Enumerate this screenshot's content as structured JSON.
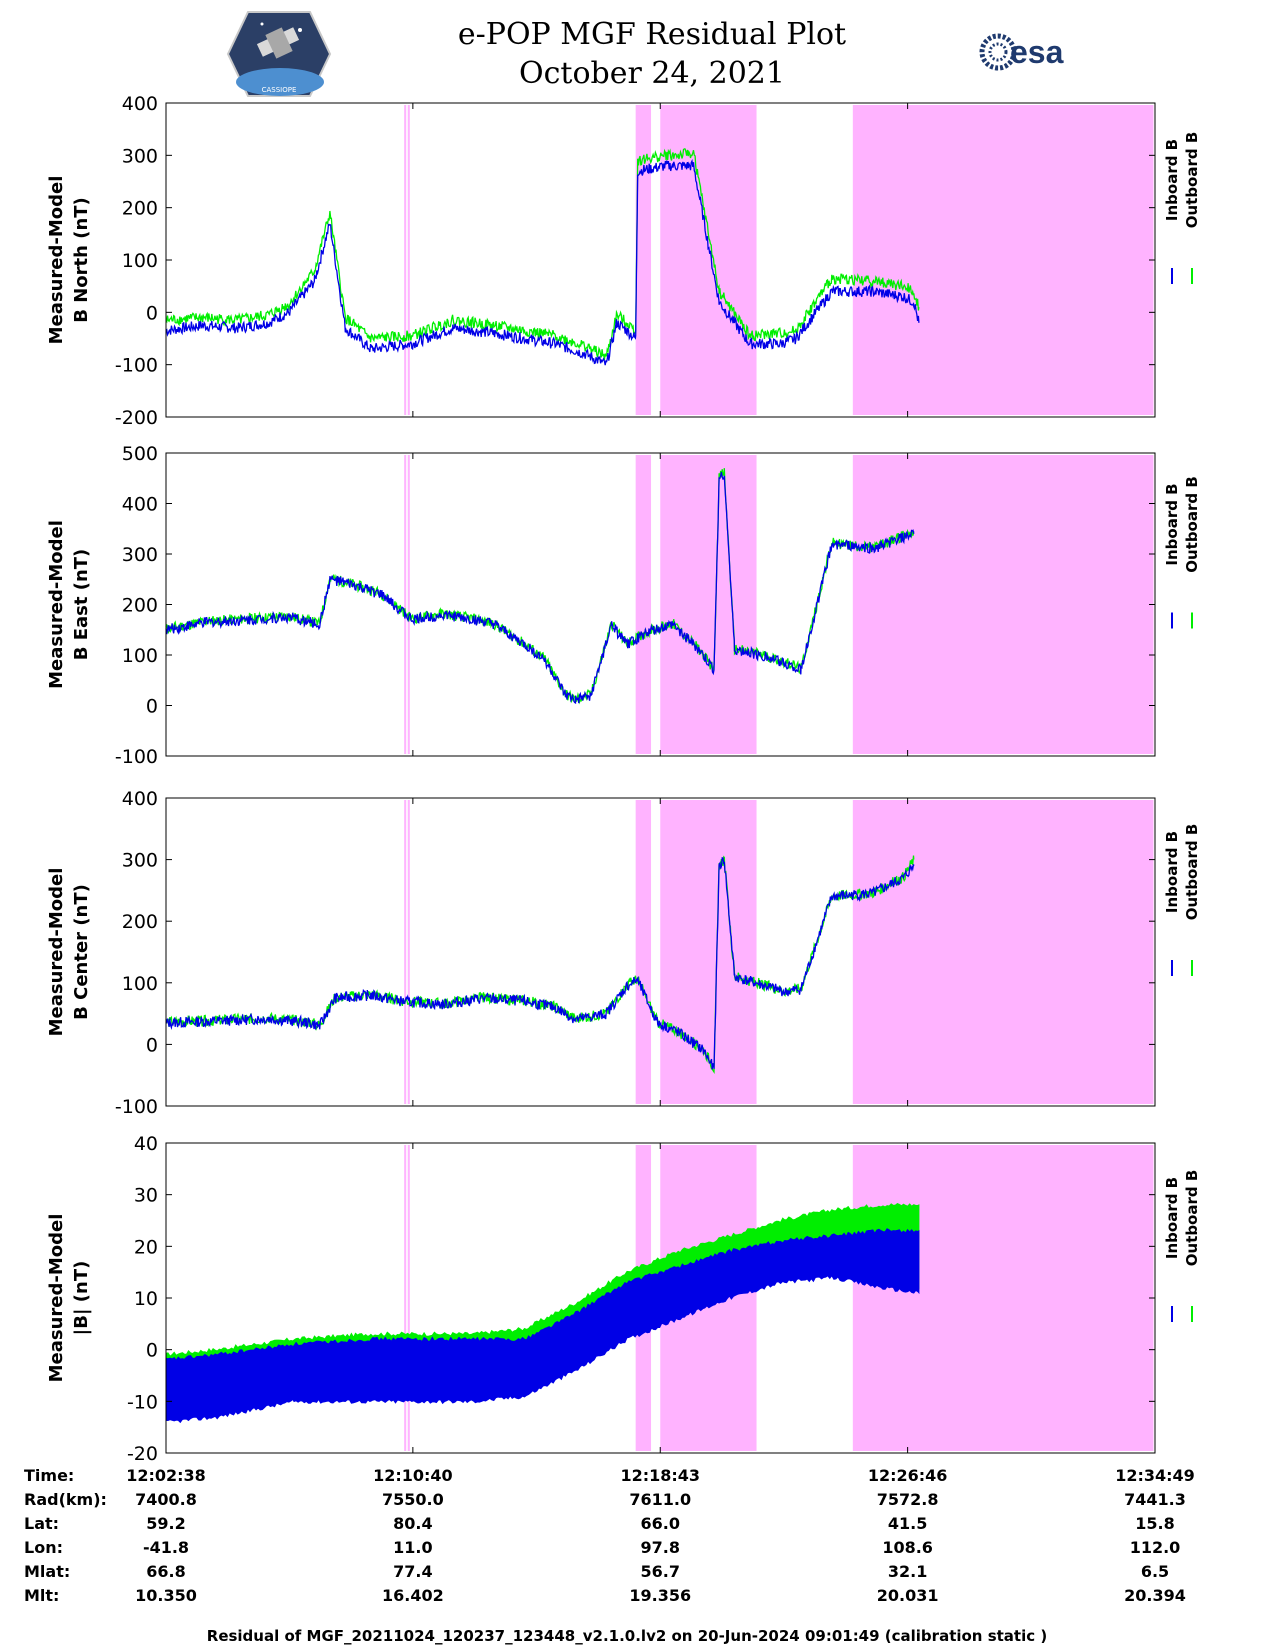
{
  "header": {
    "title_line1": "e-POP MGF Residual Plot",
    "title_line2": "October 24, 2021",
    "left_logo_text": "CASSIOPE",
    "right_logo_text": "esa"
  },
  "colors": {
    "inboard": "#0000e6",
    "outboard": "#00ee00",
    "shade": "#ffb3ff"
  },
  "legend": {
    "inboard": "Inboard B",
    "outboard": "Outboard B"
  },
  "chart_data": [
    {
      "type": "line",
      "ylabel_line1": "Measured-Model",
      "ylabel_line2": "B North (nT)",
      "ylim": [
        -200,
        400
      ],
      "yticks": [
        400,
        300,
        200,
        100,
        0,
        -100,
        -200
      ],
      "xlim_seconds": [
        0,
        1931
      ],
      "series": [
        {
          "name": "Inboard B",
          "x": [
            0,
            70,
            140,
            200,
            240,
            290,
            320,
            350,
            400,
            480,
            560,
            640,
            700,
            760,
            820,
            860,
            880,
            900,
            917,
            921,
            975,
            1000,
            1030,
            1080,
            1140,
            1200,
            1230,
            1300,
            1380,
            1440,
            1460,
            1470
          ],
          "y": [
            -35,
            -25,
            -30,
            -20,
            0,
            60,
            170,
            -30,
            -70,
            -60,
            -30,
            -40,
            -50,
            -60,
            -80,
            -100,
            -20,
            -35,
            -50,
            270,
            280,
            280,
            280,
            20,
            -60,
            -60,
            -50,
            40,
            40,
            30,
            20,
            -20
          ]
        },
        {
          "name": "Outboard B",
          "x": [
            0,
            70,
            140,
            200,
            240,
            290,
            320,
            350,
            400,
            480,
            560,
            640,
            700,
            760,
            820,
            860,
            880,
            900,
            917,
            921,
            975,
            1000,
            1030,
            1080,
            1140,
            1200,
            1230,
            1300,
            1380,
            1440,
            1460,
            1470
          ],
          "y": [
            -15,
            -10,
            -15,
            -5,
            15,
            80,
            190,
            -10,
            -50,
            -45,
            -15,
            -25,
            -35,
            -45,
            -65,
            -85,
            -5,
            -20,
            -35,
            290,
            300,
            300,
            305,
            40,
            -45,
            -40,
            -35,
            65,
            60,
            50,
            40,
            10
          ]
        }
      ]
    },
    {
      "type": "line",
      "ylabel_line1": "Measured-Model",
      "ylabel_line2": "B East (nT)",
      "ylim": [
        -100,
        500
      ],
      "yticks": [
        500,
        400,
        300,
        200,
        100,
        0,
        -100
      ],
      "xlim_seconds": [
        0,
        1931
      ],
      "series": [
        {
          "name": "Inboard B",
          "x": [
            0,
            80,
            160,
            240,
            300,
            320,
            360,
            420,
            480,
            540,
            600,
            640,
            700,
            740,
            780,
            800,
            830,
            870,
            900,
            940,
            990,
            1040,
            1070,
            1080,
            1090,
            1110,
            1160,
            1220,
            1240,
            1300,
            1380,
            1430,
            1460
          ],
          "y": [
            150,
            165,
            170,
            175,
            160,
            250,
            240,
            220,
            170,
            180,
            170,
            160,
            120,
            90,
            20,
            10,
            20,
            160,
            120,
            145,
            160,
            110,
            70,
            450,
            460,
            110,
            100,
            80,
            70,
            320,
            310,
            330,
            340
          ]
        },
        {
          "name": "Outboard B",
          "x": [
            0,
            80,
            160,
            240,
            300,
            320,
            360,
            420,
            480,
            540,
            600,
            640,
            700,
            740,
            780,
            800,
            830,
            870,
            900,
            940,
            990,
            1040,
            1070,
            1080,
            1090,
            1110,
            1160,
            1220,
            1240,
            1300,
            1380,
            1430,
            1460
          ],
          "y": [
            152,
            167,
            172,
            177,
            162,
            252,
            242,
            222,
            172,
            182,
            172,
            162,
            122,
            92,
            22,
            12,
            22,
            162,
            122,
            147,
            162,
            112,
            72,
            452,
            462,
            112,
            102,
            82,
            72,
            322,
            312,
            332,
            345
          ]
        }
      ]
    },
    {
      "type": "line",
      "ylabel_line1": "Measured-Model",
      "ylabel_line2": "B Center (nT)",
      "ylim": [
        -100,
        400
      ],
      "yticks": [
        400,
        300,
        200,
        100,
        0,
        -100
      ],
      "xlim_seconds": [
        0,
        1931
      ],
      "series": [
        {
          "name": "Inboard B",
          "x": [
            0,
            100,
            200,
            280,
            300,
            330,
            400,
            460,
            540,
            620,
            700,
            760,
            800,
            860,
            900,
            920,
            960,
            1000,
            1050,
            1070,
            1080,
            1090,
            1110,
            1150,
            1210,
            1240,
            1300,
            1380,
            1440,
            1460
          ],
          "y": [
            35,
            38,
            42,
            35,
            30,
            75,
            80,
            70,
            65,
            75,
            70,
            60,
            40,
            50,
            95,
            105,
            35,
            20,
            -10,
            -40,
            290,
            300,
            110,
            100,
            85,
            90,
            240,
            245,
            270,
            290
          ]
        },
        {
          "name": "Outboard B",
          "x": [
            0,
            100,
            200,
            280,
            300,
            330,
            400,
            460,
            540,
            620,
            700,
            760,
            800,
            860,
            900,
            920,
            960,
            1000,
            1050,
            1070,
            1080,
            1090,
            1110,
            1150,
            1210,
            1240,
            1300,
            1380,
            1440,
            1460
          ],
          "y": [
            36,
            39,
            43,
            36,
            31,
            76,
            81,
            71,
            66,
            76,
            71,
            61,
            41,
            51,
            96,
            106,
            36,
            21,
            -9,
            -39,
            291,
            301,
            111,
            101,
            86,
            91,
            241,
            246,
            272,
            300
          ]
        }
      ]
    },
    {
      "type": "area",
      "ylabel_line1": "Measured-Model",
      "ylabel_line2": "|B| (nT)",
      "ylim": [
        -20,
        40
      ],
      "yticks": [
        40,
        30,
        20,
        10,
        0,
        -10,
        -20
      ],
      "xlim_seconds": [
        0,
        1931
      ],
      "series": [
        {
          "name": "Outboard B",
          "x": [
            0,
            100,
            250,
            400,
            500,
            600,
            700,
            800,
            900,
            1000,
            1100,
            1200,
            1300,
            1400,
            1470
          ],
          "upper": [
            -1,
            0,
            2,
            3,
            3,
            3,
            4,
            9,
            15,
            19,
            22,
            25,
            27,
            28,
            28
          ],
          "lower": [
            -13,
            -12,
            -9,
            -9,
            -9,
            -9,
            -8,
            -3,
            3,
            7,
            11,
            14,
            15,
            13,
            12
          ]
        },
        {
          "name": "Inboard B",
          "x": [
            0,
            100,
            250,
            400,
            500,
            600,
            700,
            800,
            900,
            1000,
            1100,
            1200,
            1300,
            1400,
            1470
          ],
          "upper": [
            -2,
            -1,
            1,
            2,
            2,
            2,
            2,
            7,
            13,
            16,
            19,
            21,
            22,
            23,
            23
          ],
          "lower": [
            -14,
            -13,
            -10,
            -10,
            -10,
            -10,
            -9,
            -4,
            2,
            6,
            10,
            13,
            14,
            12,
            11
          ]
        }
      ]
    }
  ],
  "shaded_regions_seconds": [
    [
      465,
      469
    ],
    [
      472,
      476
    ],
    [
      917,
      947
    ],
    [
      965,
      1153
    ],
    [
      1341,
      1928
    ]
  ],
  "xticks_seconds": [
    0,
    482,
    965,
    1448,
    1931
  ],
  "ephemeris": {
    "row_labels": [
      "Time:",
      "Rad(km):",
      "Lat:",
      "Lon:",
      "Mlat:",
      "Mlt:"
    ],
    "columns": [
      [
        "12:02:38",
        "7400.8",
        "59.2",
        "-41.8",
        "66.8",
        "10.350"
      ],
      [
        "12:10:40",
        "7550.0",
        "80.4",
        "11.0",
        "77.4",
        "16.402"
      ],
      [
        "12:18:43",
        "7611.0",
        "66.0",
        "97.8",
        "56.7",
        "19.356"
      ],
      [
        "12:26:46",
        "7572.8",
        "41.5",
        "108.6",
        "32.1",
        "20.031"
      ],
      [
        "12:34:49",
        "7441.3",
        "15.8",
        "112.0",
        "6.5",
        "20.394"
      ]
    ]
  },
  "footer": "Residual of MGF_20211024_120237_123448_v2.1.0.lv2 on 20-Jun-2024 09:01:49 (calibration static )"
}
